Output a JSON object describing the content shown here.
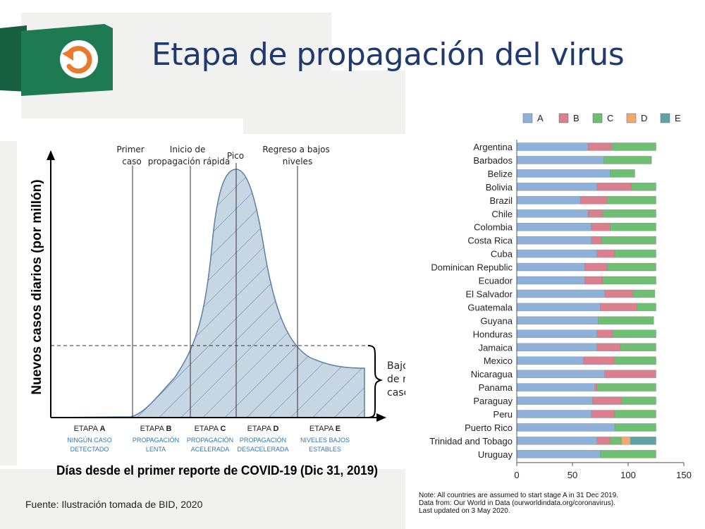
{
  "title": "Etapa de propagación del virus",
  "source": "Fuente: Ilustración tomada de BID, 2020",
  "colors": {
    "accent_green": "#1d7a52",
    "icon_orange": "#ea7a2a",
    "title_blue": "#1f3a6e",
    "curve_fill": "#c7d6e3",
    "curve_hatch": "#5b7fa6",
    "stage_label_blue": "#2b78b8"
  },
  "icons": {
    "badge": "undo-arrow-icon"
  },
  "curve_diagram": {
    "ylabel": "Nuevos casos diarios (por millón)",
    "xlabel": "Días desde el primer reporte de COVID-19 (Dic 31, 2019)",
    "markers": [
      {
        "key": "first_case",
        "lines": [
          "Primer",
          "caso"
        ]
      },
      {
        "key": "rapid_start",
        "lines": [
          "Inicio de",
          "propagación rápida"
        ]
      },
      {
        "key": "peak",
        "lines": [
          "Pico"
        ]
      },
      {
        "key": "return_low",
        "lines": [
          "Regreso a bajos",
          "niveles"
        ]
      }
    ],
    "brace_label": [
      "Bajos niveles",
      "de nuevos",
      "casos"
    ],
    "stages": [
      {
        "prefix": "ETAPA ",
        "letter": "A",
        "desc": [
          "NINGÚN CASO",
          "DETECTADO"
        ]
      },
      {
        "prefix": "ETAPA ",
        "letter": "B",
        "desc": [
          "PROPAGACIÓN",
          "LENTA"
        ]
      },
      {
        "prefix": "ETAPA ",
        "letter": "C",
        "desc": [
          "PROPAGACIÓN",
          "ACELERADA"
        ]
      },
      {
        "prefix": "ETAPA ",
        "letter": "D",
        "desc": [
          "PROPAGACIÓN",
          "DESACELERADA"
        ]
      },
      {
        "prefix": "ETAPA ",
        "letter": "E",
        "desc": [
          "NIVELES BAJOS",
          "ESTABLES"
        ]
      }
    ]
  },
  "chart_data": {
    "type": "bar",
    "orientation": "horizontal",
    "stacked": true,
    "legend_position": "top",
    "categories": [
      "Argentina",
      "Barbados",
      "Belize",
      "Bolivia",
      "Brazil",
      "Chile",
      "Colombia",
      "Costa Rica",
      "Cuba",
      "Dominican Republic",
      "Ecuador",
      "El Salvador",
      "Guatemala",
      "Guyana",
      "Honduras",
      "Jamaica",
      "Mexico",
      "Nicaragua",
      "Panama",
      "Paraguay",
      "Peru",
      "Puerto Rico",
      "Trinidad and Tobago",
      "Uruguay"
    ],
    "series": [
      {
        "name": "A",
        "color": "#8eb1d9",
        "values": [
          64,
          78,
          84,
          72,
          57,
          64,
          67,
          67,
          72,
          61,
          61,
          79,
          75,
          73,
          72,
          72,
          60,
          79,
          70,
          68,
          67,
          88,
          72,
          75
        ]
      },
      {
        "name": "B",
        "color": "#da7f8e",
        "values": [
          21,
          0,
          0,
          31,
          24,
          13,
          17,
          9,
          16,
          20,
          16,
          25,
          33,
          0,
          14,
          21,
          28,
          46,
          2,
          26,
          21,
          0,
          12,
          0
        ]
      },
      {
        "name": "C",
        "color": "#6fbf73",
        "values": [
          40,
          43,
          22,
          22,
          44,
          48,
          41,
          49,
          37,
          44,
          48,
          20,
          17,
          50,
          39,
          32,
          37,
          0,
          53,
          31,
          37,
          37,
          10,
          50
        ]
      },
      {
        "name": "D",
        "color": "#f2a96b",
        "values": [
          0,
          0,
          0,
          0,
          0,
          0,
          0,
          0,
          0,
          0,
          0,
          0,
          0,
          0,
          0,
          0,
          0,
          0,
          0,
          0,
          0,
          0,
          8,
          0
        ]
      },
      {
        "name": "E",
        "color": "#5fa3a6",
        "values": [
          0,
          0,
          0,
          0,
          0,
          0,
          0,
          0,
          0,
          0,
          0,
          0,
          0,
          0,
          0,
          0,
          0,
          0,
          0,
          0,
          0,
          0,
          23,
          0
        ]
      }
    ],
    "xlim": [
      0,
      150
    ],
    "xticks": [
      0,
      50,
      100,
      150
    ],
    "xlabel": "",
    "ylabel": "",
    "grid": false,
    "notes": [
      "Note: All countries are assumed to start stage A in 31 Dec 2019.",
      "Data from: Our World in Data (ourworldindata.org/coronavirus).",
      "Last updated on  3 May 2020."
    ]
  }
}
